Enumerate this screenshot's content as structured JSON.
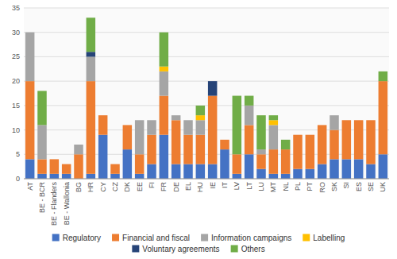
{
  "chart_data": {
    "type": "bar",
    "stacked": true,
    "categories": [
      "AT",
      "BE - BCR",
      "BE - Flanders",
      "BE - Wallonia",
      "BG",
      "HR",
      "CY",
      "CZ",
      "DK",
      "EE",
      "FI",
      "FR",
      "DE",
      "EL",
      "HU",
      "IE",
      "IT",
      "LV",
      "LT",
      "LU",
      "MT",
      "NL",
      "PL",
      "PT",
      "RO",
      "SK",
      "SI",
      "ES",
      "SE",
      "UK"
    ],
    "series": [
      {
        "name": "Regulatory",
        "color": "#4472C4",
        "values": [
          4,
          1,
          1,
          1,
          0,
          1,
          9,
          1,
          6,
          1,
          3,
          9,
          3,
          3,
          3,
          3,
          6,
          1,
          5,
          2,
          1,
          1,
          2,
          2,
          3,
          4,
          4,
          4,
          3,
          5
        ]
      },
      {
        "name": "Financial and fiscal",
        "color": "#ED7D31",
        "values": [
          16,
          3,
          3,
          2,
          5,
          19,
          4,
          2,
          5,
          4,
          6,
          8,
          9,
          6,
          6,
          14,
          2,
          4,
          6,
          3,
          5,
          5,
          7,
          7,
          8,
          6,
          8,
          8,
          9,
          15
        ]
      },
      {
        "name": "Information campaigns",
        "color": "#A5A5A5",
        "values": [
          10,
          7,
          0,
          0,
          2,
          5,
          0,
          0,
          0,
          7,
          3,
          5,
          1,
          3,
          3,
          0,
          0,
          0,
          4,
          1,
          5,
          0,
          0,
          0,
          0,
          3,
          0,
          0,
          0,
          0
        ]
      },
      {
        "name": "Labelling",
        "color": "#FFC000",
        "values": [
          0,
          0,
          0,
          0,
          0,
          0,
          0,
          0,
          0,
          0,
          0,
          1,
          0,
          0,
          1,
          0,
          0,
          0,
          0,
          0,
          1,
          0,
          0,
          0,
          0,
          0,
          0,
          0,
          0,
          0
        ]
      },
      {
        "name": "Voluntary agreements",
        "color": "#264478",
        "values": [
          0,
          0,
          0,
          0,
          0,
          1,
          0,
          0,
          0,
          0,
          0,
          0,
          0,
          0,
          0,
          3,
          0,
          0,
          0,
          0,
          0,
          0,
          0,
          0,
          0,
          0,
          0,
          0,
          0,
          0
        ]
      },
      {
        "name": "Others",
        "color": "#70AD47",
        "values": [
          0,
          7,
          0,
          0,
          0,
          7,
          0,
          0,
          0,
          0,
          0,
          7,
          0,
          0,
          2,
          0,
          0,
          12,
          2,
          7,
          1,
          2,
          0,
          0,
          0,
          0,
          0,
          0,
          0,
          2
        ]
      }
    ],
    "ylim": [
      0,
      35
    ],
    "yticks": [
      0,
      5,
      10,
      15,
      20,
      25,
      30,
      35
    ],
    "grid": true,
    "legend": "bottom"
  }
}
